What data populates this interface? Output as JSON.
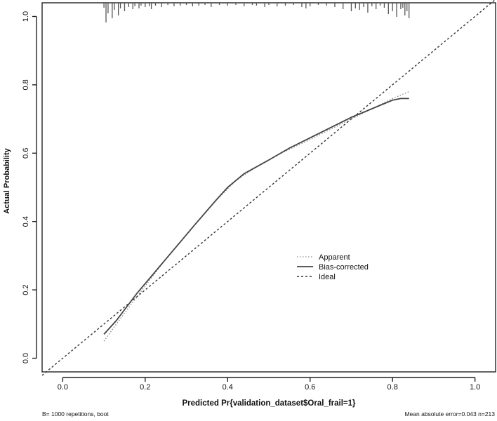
{
  "chart_data": {
    "type": "line",
    "xlabel": "Predicted Pr{validation_dataset$Oral_frail=1}",
    "ylabel": "Actual Probability",
    "xlim": [
      -0.05,
      1.05
    ],
    "ylim": [
      -0.04,
      1.04
    ],
    "x_ticks": [
      0.0,
      0.2,
      0.4,
      0.6,
      0.8,
      1.0
    ],
    "y_ticks": [
      0.0,
      0.2,
      0.4,
      0.6,
      0.8,
      1.0
    ],
    "x_tick_labels": [
      "0.0",
      "0.2",
      "0.4",
      "0.6",
      "0.8",
      "1.0"
    ],
    "y_tick_labels": [
      "0.0",
      "0.2",
      "0.4",
      "0.6",
      "0.8",
      "1.0"
    ],
    "legend": {
      "position": "center-right",
      "entries": [
        "Apparent",
        "Bias-corrected",
        "Ideal"
      ]
    },
    "series": [
      {
        "name": "Apparent",
        "style": "dotted",
        "color": "#888888",
        "x": [
          0.1,
          0.13,
          0.18,
          0.25,
          0.32,
          0.37,
          0.42,
          0.47,
          0.53,
          0.6,
          0.65,
          0.7,
          0.75,
          0.8,
          0.84
        ],
        "y": [
          0.05,
          0.1,
          0.18,
          0.29,
          0.39,
          0.46,
          0.52,
          0.56,
          0.6,
          0.64,
          0.67,
          0.7,
          0.73,
          0.76,
          0.78
        ]
      },
      {
        "name": "Bias-corrected",
        "style": "solid",
        "color": "#444444",
        "x": [
          0.1,
          0.13,
          0.18,
          0.25,
          0.32,
          0.37,
          0.4,
          0.44,
          0.5,
          0.55,
          0.6,
          0.65,
          0.7,
          0.75,
          0.8,
          0.82,
          0.84
        ],
        "y": [
          0.07,
          0.11,
          0.19,
          0.29,
          0.39,
          0.46,
          0.5,
          0.54,
          0.58,
          0.615,
          0.645,
          0.675,
          0.705,
          0.73,
          0.755,
          0.76,
          0.76
        ]
      },
      {
        "name": "Ideal",
        "style": "dashed",
        "color": "#333333",
        "x": [
          -0.05,
          1.05
        ],
        "y": [
          -0.05,
          1.05
        ]
      }
    ],
    "rug": {
      "x": [
        0.1,
        0.105,
        0.11,
        0.12,
        0.125,
        0.135,
        0.14,
        0.15,
        0.16,
        0.17,
        0.175,
        0.185,
        0.19,
        0.2,
        0.21,
        0.215,
        0.225,
        0.24,
        0.255,
        0.27,
        0.285,
        0.3,
        0.315,
        0.33,
        0.345,
        0.36,
        0.38,
        0.4,
        0.42,
        0.44,
        0.46,
        0.47,
        0.49,
        0.5,
        0.52,
        0.54,
        0.56,
        0.58,
        0.59,
        0.6,
        0.62,
        0.64,
        0.66,
        0.68,
        0.7,
        0.71,
        0.72,
        0.73,
        0.74,
        0.75,
        0.76,
        0.77,
        0.78,
        0.79,
        0.8,
        0.81,
        0.82,
        0.825,
        0.83,
        0.835,
        0.84
      ],
      "h": [
        7,
        28,
        15,
        22,
        10,
        18,
        8,
        12,
        6,
        9,
        5,
        8,
        4,
        6,
        5,
        9,
        4,
        6,
        3,
        5,
        4,
        3,
        5,
        4,
        3,
        6,
        3,
        4,
        3,
        5,
        3,
        4,
        6,
        3,
        5,
        4,
        3,
        6,
        8,
        5,
        3,
        4,
        6,
        9,
        12,
        8,
        10,
        6,
        14,
        5,
        9,
        4,
        7,
        16,
        12,
        20,
        9,
        7,
        18,
        12,
        22
      ]
    },
    "footnote_left": "B= 1000 repetitions, boot",
    "footnote_right": "Mean absolute error=0.043 n=213"
  }
}
